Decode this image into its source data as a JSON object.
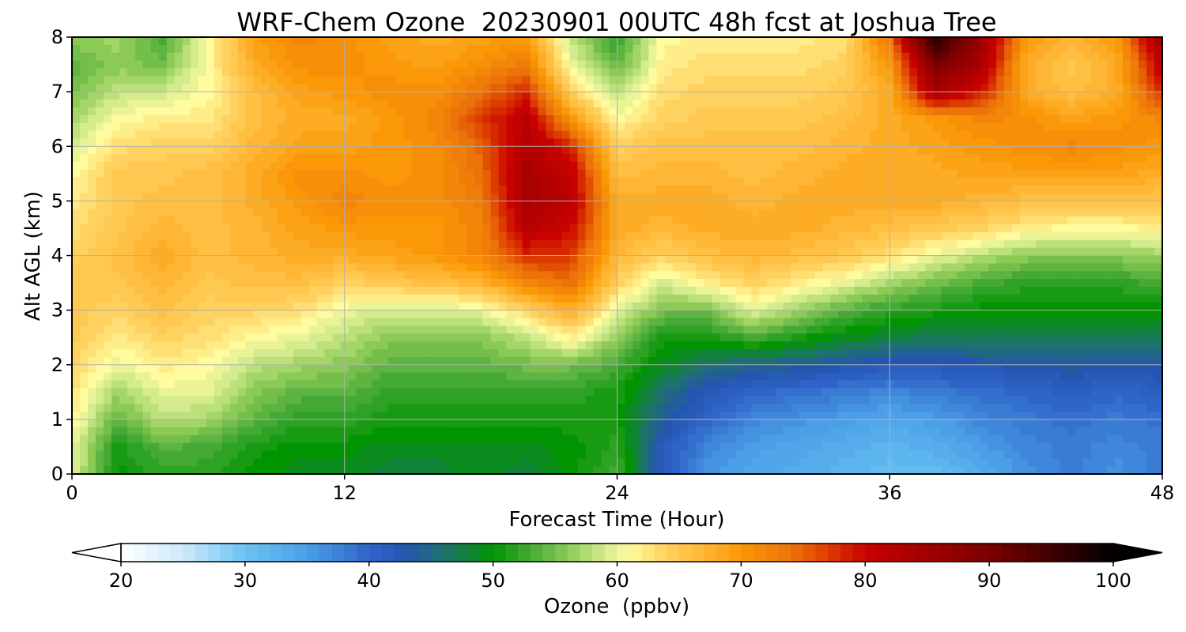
{
  "chart_data": {
    "type": "heatmap",
    "title": "WRF-Chem Ozone  20230901 00UTC 48h fcst at Joshua Tree",
    "xlabel": "Forecast Time (Hour)",
    "ylabel": "Alt AGL (km)",
    "xlim": [
      0,
      48
    ],
    "ylim": [
      0,
      8
    ],
    "x_ticks": [
      0,
      12,
      24,
      36,
      48
    ],
    "y_ticks": [
      0,
      1,
      2,
      3,
      4,
      5,
      6,
      7,
      8
    ],
    "grid": true,
    "x": [
      0,
      2,
      4,
      6,
      8,
      10,
      12,
      14,
      16,
      18,
      20,
      22,
      24,
      26,
      28,
      30,
      32,
      34,
      36,
      38,
      40,
      42,
      44,
      46,
      48
    ],
    "y": [
      0,
      0.5,
      1,
      1.5,
      2,
      2.5,
      3,
      3.5,
      4,
      4.5,
      5,
      5.5,
      6,
      6.5,
      7,
      7.5,
      8
    ],
    "z": [
      [
        60,
        50,
        52,
        52,
        50,
        49,
        49,
        48,
        48,
        49,
        48,
        50,
        53,
        42,
        36,
        34,
        33,
        32,
        31,
        31,
        33,
        36,
        38,
        36,
        38
      ],
      [
        60,
        51,
        54,
        53,
        51,
        50,
        50,
        49,
        49,
        49,
        49,
        50,
        52,
        42,
        37,
        35,
        34,
        33,
        32,
        33,
        35,
        37,
        38,
        37,
        38
      ],
      [
        62,
        54,
        58,
        57,
        54,
        52,
        52,
        51,
        51,
        51,
        51,
        51,
        51,
        44,
        40,
        37,
        36,
        35,
        34,
        35,
        37,
        38,
        39,
        38,
        39
      ],
      [
        63,
        57,
        60,
        60,
        56,
        54,
        54,
        52,
        52,
        52,
        52,
        52,
        51,
        46,
        42,
        40,
        39,
        38,
        37,
        38,
        39,
        40,
        41,
        40,
        41
      ],
      [
        64,
        60,
        62,
        61,
        58,
        57,
        56,
        54,
        54,
        54,
        55,
        55,
        53,
        49,
        46,
        45,
        44,
        43,
        42,
        42,
        43,
        43,
        44,
        43,
        44
      ],
      [
        65,
        62,
        64,
        63,
        61,
        60,
        58,
        56,
        56,
        56,
        58,
        62,
        56,
        51,
        51,
        53,
        51,
        49,
        48,
        47,
        47,
        47,
        47,
        47,
        47
      ],
      [
        65,
        64,
        66,
        64,
        64,
        63,
        60,
        59,
        59,
        60,
        64,
        68,
        60,
        55,
        55,
        60,
        57,
        54,
        52,
        51,
        50,
        50,
        50,
        50,
        50
      ],
      [
        65,
        65,
        67,
        65,
        66,
        66,
        64,
        65,
        66,
        67,
        72,
        74,
        64,
        59,
        62,
        64,
        62,
        60,
        57,
        55,
        53,
        52,
        52,
        52,
        53
      ],
      [
        64,
        66,
        68,
        66,
        67,
        68,
        68,
        69,
        70,
        72,
        78,
        77,
        67,
        64,
        66,
        67,
        66,
        65,
        63,
        60,
        58,
        56,
        56,
        56,
        57
      ],
      [
        63,
        65,
        67,
        66,
        67,
        69,
        70,
        70,
        70,
        72,
        82,
        80,
        68,
        67,
        68,
        68,
        68,
        67,
        66,
        65,
        64,
        62,
        61,
        61,
        62
      ],
      [
        62,
        65,
        66,
        66,
        68,
        70,
        72,
        71,
        71,
        73,
        84,
        82,
        68,
        68,
        68,
        67,
        68,
        68,
        68,
        68,
        67,
        66,
        66,
        66,
        65
      ],
      [
        61,
        65,
        65,
        66,
        68,
        71,
        71,
        70,
        71,
        74,
        84,
        81,
        66,
        67,
        67,
        66,
        67,
        68,
        68,
        68,
        69,
        69,
        69,
        69,
        68
      ],
      [
        59,
        63,
        64,
        64,
        67,
        69,
        69,
        70,
        71,
        75,
        83,
        78,
        64,
        66,
        66,
        66,
        66,
        67,
        68,
        69,
        70,
        71,
        72,
        71,
        70
      ],
      [
        57,
        61,
        62,
        62,
        66,
        68,
        68,
        70,
        72,
        77,
        82,
        70,
        61,
        64,
        65,
        65,
        65,
        66,
        68,
        70,
        72,
        71,
        69,
        70,
        72
      ],
      [
        55,
        58,
        59,
        61,
        66,
        69,
        70,
        71,
        71,
        74,
        78,
        64,
        58,
        63,
        64,
        64,
        64,
        65,
        68,
        84,
        79,
        68,
        66,
        68,
        78
      ],
      [
        54,
        56,
        55,
        61,
        68,
        71,
        71,
        70,
        69,
        71,
        73,
        60,
        54,
        62,
        63,
        63,
        63,
        64,
        70,
        90,
        84,
        68,
        65,
        68,
        82
      ],
      [
        56,
        57,
        53,
        61,
        69,
        72,
        71,
        69,
        68,
        69,
        70,
        58,
        52,
        61,
        62,
        62,
        62,
        63,
        74,
        98,
        86,
        70,
        67,
        70,
        86
      ]
    ],
    "colorbar": {
      "label": "Ozone  (ppbv)",
      "levels": [
        20,
        100
      ],
      "ticks": [
        20,
        30,
        40,
        50,
        60,
        70,
        80,
        90,
        100
      ],
      "extend": "both",
      "orientation": "horizontal",
      "placement": "bottom",
      "colors": [
        {
          "v": 20,
          "c": "#ffffff"
        },
        {
          "v": 25,
          "c": "#cdeafa"
        },
        {
          "v": 30,
          "c": "#6ac3f3"
        },
        {
          "v": 35,
          "c": "#4a9fe6"
        },
        {
          "v": 40,
          "c": "#2f64c8"
        },
        {
          "v": 43,
          "c": "#2455b0"
        },
        {
          "v": 46,
          "c": "#1f7070"
        },
        {
          "v": 50,
          "c": "#019401"
        },
        {
          "v": 53,
          "c": "#45a935"
        },
        {
          "v": 56,
          "c": "#8cca56"
        },
        {
          "v": 59,
          "c": "#d4ec8e"
        },
        {
          "v": 61,
          "c": "#fffb9f"
        },
        {
          "v": 64,
          "c": "#ffd15e"
        },
        {
          "v": 67,
          "c": "#ffb634"
        },
        {
          "v": 70,
          "c": "#fa9807"
        },
        {
          "v": 74,
          "c": "#ec730a"
        },
        {
          "v": 77,
          "c": "#dd3c00"
        },
        {
          "v": 80,
          "c": "#c90200"
        },
        {
          "v": 85,
          "c": "#a10000"
        },
        {
          "v": 90,
          "c": "#7a0000"
        },
        {
          "v": 95,
          "c": "#3f0000"
        },
        {
          "v": 100,
          "c": "#000000"
        }
      ]
    }
  }
}
